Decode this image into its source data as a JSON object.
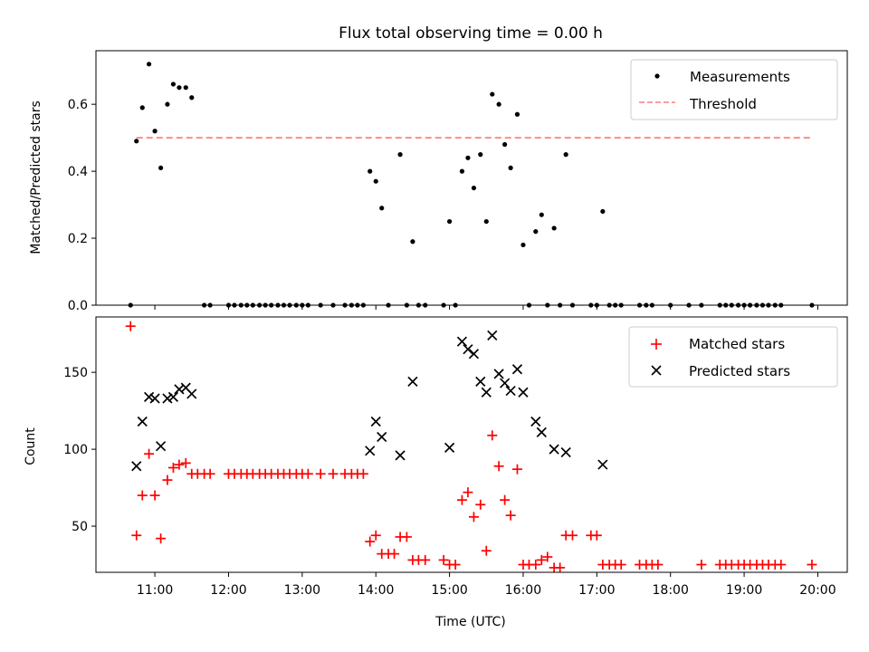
{
  "figure": {
    "title": "Flux total observing time = 0.00 h"
  },
  "chart_data": [
    {
      "type": "scatter",
      "ylabel": "Matched/Predicted stars",
      "xlim": [
        10.2,
        20.4
      ],
      "ylim": [
        0,
        0.76
      ],
      "yticks": [
        0.0,
        0.2,
        0.4,
        0.6
      ],
      "ytick_labels": [
        "0.0",
        "0.2",
        "0.4",
        "0.6"
      ],
      "xticks": [
        11,
        12,
        13,
        14,
        15,
        16,
        17,
        18,
        19,
        20
      ],
      "legend_position": "upper right",
      "legend": [
        {
          "label": "Measurements",
          "marker": "dot",
          "color": "#000000"
        },
        {
          "label": "Threshold",
          "marker": "dashed-line",
          "color": "#ff7f7f"
        }
      ],
      "threshold": {
        "y": 0.5,
        "x_start": 10.75,
        "x_end": 19.9,
        "color": "#ff7f7f"
      },
      "series": [
        {
          "name": "Measurements",
          "color": "#000000",
          "x": [
            10.75,
            10.83,
            10.92,
            11.0,
            11.08,
            11.17,
            11.25,
            11.33,
            11.42,
            11.5,
            14.0,
            14.08,
            14.33,
            14.5,
            15.0,
            15.17,
            15.25,
            15.33,
            15.42,
            15.5,
            15.58,
            15.67,
            15.75,
            15.83,
            15.92,
            16.0,
            16.17,
            16.25,
            16.42,
            16.58,
            17.08,
            13.92
          ],
          "y": [
            0.49,
            0.59,
            0.72,
            0.52,
            0.41,
            0.6,
            0.66,
            0.65,
            0.65,
            0.62,
            0.37,
            0.29,
            0.45,
            0.19,
            0.25,
            0.4,
            0.44,
            0.35,
            0.45,
            0.25,
            0.63,
            0.6,
            0.48,
            0.41,
            0.57,
            0.18,
            0.22,
            0.27,
            0.23,
            0.45,
            0.28,
            0.4
          ]
        },
        {
          "name": "Measurements (zero)",
          "color": "#000000",
          "x": [
            10.67,
            11.67,
            11.75,
            12.0,
            12.08,
            12.17,
            12.25,
            12.33,
            12.42,
            12.5,
            12.58,
            12.67,
            12.75,
            12.83,
            12.92,
            13.0,
            13.08,
            13.25,
            13.42,
            13.58,
            13.67,
            13.75,
            13.83,
            14.17,
            14.42,
            14.58,
            14.67,
            14.92,
            15.08,
            16.08,
            16.33,
            16.5,
            16.67,
            16.92,
            17.0,
            17.17,
            17.25,
            17.33,
            17.58,
            17.67,
            17.75,
            18.0,
            18.25,
            18.42,
            18.67,
            18.75,
            18.83,
            18.92,
            19.0,
            19.08,
            19.17,
            19.25,
            19.33,
            19.42,
            19.5,
            19.92
          ],
          "y": [
            0,
            0,
            0,
            0,
            0,
            0,
            0,
            0,
            0,
            0,
            0,
            0,
            0,
            0,
            0,
            0,
            0,
            0,
            0,
            0,
            0,
            0,
            0,
            0,
            0,
            0,
            0,
            0,
            0,
            0,
            0,
            0,
            0,
            0,
            0,
            0,
            0,
            0,
            0,
            0,
            0,
            0,
            0,
            0,
            0,
            0,
            0,
            0,
            0,
            0,
            0,
            0,
            0,
            0,
            0,
            0
          ]
        }
      ]
    },
    {
      "type": "scatter",
      "xlabel": "Time (UTC)",
      "ylabel": "Count",
      "xlim": [
        10.2,
        20.4
      ],
      "ylim": [
        20,
        186
      ],
      "yticks": [
        50,
        100,
        150
      ],
      "ytick_labels": [
        "50",
        "100",
        "150"
      ],
      "xticks": [
        11,
        12,
        13,
        14,
        15,
        16,
        17,
        18,
        19,
        20
      ],
      "xtick_labels": [
        "11:00",
        "12:00",
        "13:00",
        "14:00",
        "15:00",
        "16:00",
        "17:00",
        "18:00",
        "19:00",
        "20:00"
      ],
      "legend_position": "upper right",
      "legend": [
        {
          "label": "Matched stars",
          "marker": "plus",
          "color": "#ff0000"
        },
        {
          "label": "Predicted stars",
          "marker": "x",
          "color": "#000000"
        }
      ],
      "series": [
        {
          "name": "Matched stars",
          "color": "#ff0000",
          "x": [
            10.67,
            10.75,
            10.83,
            10.92,
            11.0,
            11.08,
            11.17,
            11.25,
            11.33,
            11.42,
            11.5,
            11.58,
            11.67,
            11.75,
            12.0,
            12.08,
            12.17,
            12.25,
            12.33,
            12.42,
            12.5,
            12.58,
            12.67,
            12.75,
            12.83,
            12.92,
            13.0,
            13.08,
            13.25,
            13.42,
            13.58,
            13.67,
            13.75,
            13.83,
            13.92,
            14.0,
            14.08,
            14.17,
            14.25,
            14.33,
            14.42,
            14.5,
            14.58,
            14.67,
            14.92,
            15.0,
            15.08,
            15.17,
            15.25,
            15.33,
            15.42,
            15.5,
            15.58,
            15.67,
            15.75,
            15.83,
            15.92,
            16.0,
            16.08,
            16.17,
            16.25,
            16.33,
            16.42,
            16.5,
            16.58,
            16.67,
            16.92,
            17.0,
            17.08,
            17.17,
            17.25,
            17.33,
            17.58,
            17.67,
            17.75,
            17.83,
            18.42,
            18.67,
            18.75,
            18.83,
            18.92,
            19.0,
            19.08,
            19.17,
            19.25,
            19.33,
            19.42,
            19.5,
            19.92
          ],
          "y": [
            180,
            44,
            70,
            97,
            70,
            42,
            80,
            88,
            90,
            91,
            84,
            84,
            84,
            84,
            84,
            84,
            84,
            84,
            84,
            84,
            84,
            84,
            84,
            84,
            84,
            84,
            84,
            84,
            84,
            84,
            84,
            84,
            84,
            84,
            40,
            44,
            32,
            32,
            32,
            43,
            43,
            28,
            28,
            28,
            28,
            25,
            25,
            67,
            72,
            56,
            64,
            34,
            109,
            89,
            67,
            57,
            87,
            25,
            25,
            25,
            28,
            30,
            23,
            23,
            44,
            44,
            44,
            44,
            25,
            25,
            25,
            25,
            25,
            25,
            25,
            25,
            25,
            25,
            25,
            25,
            25,
            25,
            25,
            25,
            25,
            25,
            25,
            25,
            25
          ]
        },
        {
          "name": "Predicted stars",
          "color": "#000000",
          "x": [
            10.75,
            10.83,
            10.92,
            11.0,
            11.08,
            11.17,
            11.25,
            11.33,
            11.42,
            11.5,
            13.92,
            14.0,
            14.08,
            14.33,
            14.5,
            15.0,
            15.17,
            15.25,
            15.33,
            15.42,
            15.5,
            15.58,
            15.67,
            15.75,
            15.83,
            15.92,
            16.0,
            16.17,
            16.25,
            16.42,
            16.58,
            17.08
          ],
          "y": [
            89,
            118,
            134,
            133,
            102,
            133,
            134,
            139,
            140,
            136,
            99,
            118,
            108,
            96,
            144,
            101,
            170,
            165,
            162,
            144,
            137,
            174,
            149,
            143,
            138,
            152,
            137,
            118,
            111,
            100,
            98,
            90
          ]
        }
      ]
    }
  ]
}
